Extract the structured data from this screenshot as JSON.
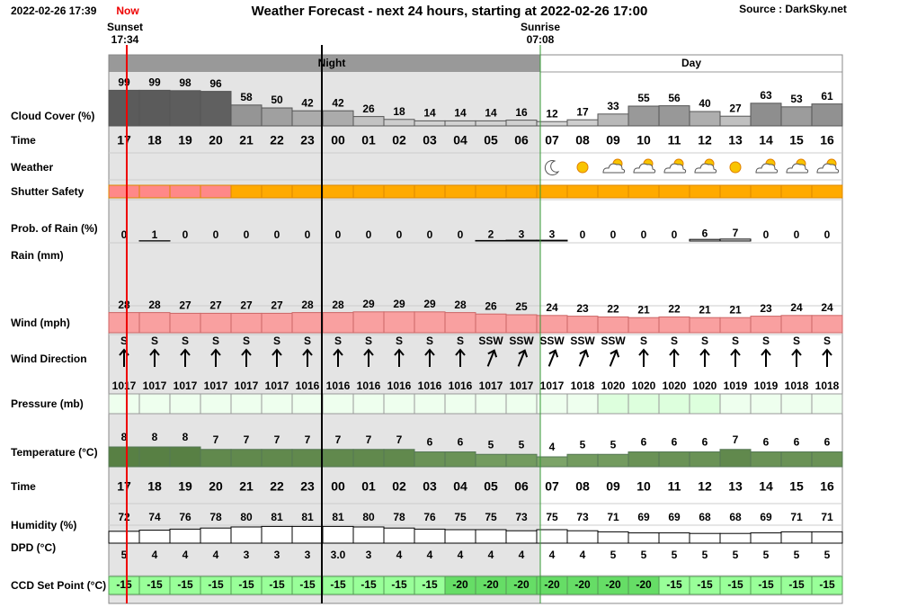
{
  "header": {
    "timestamp": "2022-02-26 17:39",
    "now": "Now",
    "title": "Weather Forecast - next 24 hours, starting at 2022-02-26 17:00",
    "source": "Source : DarkSky.net"
  },
  "sunset": {
    "label": "Sunset",
    "time": "17:34"
  },
  "sunrise": {
    "label": "Sunrise",
    "time": "07:08"
  },
  "periods": [
    "Night",
    "Day"
  ],
  "rows": {
    "cloud_cover": {
      "label": "Cloud Cover (%)",
      "values": [
        99,
        99,
        98,
        96,
        58,
        50,
        42,
        42,
        26,
        18,
        14,
        14,
        14,
        16,
        12,
        17,
        33,
        55,
        56,
        40,
        27,
        63,
        53,
        61
      ]
    },
    "time": {
      "label": "Time",
      "values": [
        "17",
        "18",
        "19",
        "20",
        "21",
        "22",
        "23",
        "00",
        "01",
        "02",
        "03",
        "04",
        "05",
        "06",
        "07",
        "08",
        "09",
        "10",
        "11",
        "12",
        "13",
        "14",
        "15",
        "16"
      ]
    },
    "weather": {
      "label": "Weather"
    },
    "shutter_safety": {
      "label": "Shutter Safety"
    },
    "prob_rain": {
      "label": "Prob. of Rain (%)",
      "values": [
        0,
        1,
        0,
        0,
        0,
        0,
        0,
        0,
        0,
        0,
        0,
        0,
        2,
        3,
        3,
        0,
        0,
        0,
        0,
        6,
        7,
        0,
        0,
        0
      ]
    },
    "rain": {
      "label": "Rain (mm)"
    },
    "wind": {
      "label": "Wind (mph)",
      "values": [
        28,
        28,
        27,
        27,
        27,
        27,
        28,
        28,
        29,
        29,
        29,
        28,
        26,
        25,
        24,
        23,
        22,
        21,
        22,
        21,
        21,
        23,
        24,
        24
      ]
    },
    "wind_direction": {
      "label": "Wind Direction",
      "values": [
        "S",
        "S",
        "S",
        "S",
        "S",
        "S",
        "S",
        "S",
        "S",
        "S",
        "S",
        "S",
        "SSW",
        "SSW",
        "SSW",
        "SSW",
        "SSW",
        "S",
        "S",
        "S",
        "S",
        "S",
        "S",
        "S"
      ]
    },
    "pressure": {
      "label": "Pressure (mb)",
      "values": [
        1017,
        1017,
        1017,
        1017,
        1017,
        1017,
        1016,
        1016,
        1016,
        1016,
        1016,
        1016,
        1017,
        1017,
        1017,
        1018,
        1020,
        1020,
        1020,
        1020,
        1019,
        1019,
        1018,
        1018
      ]
    },
    "temperature": {
      "label": "Temperature (°C)",
      "values": [
        8,
        8,
        8,
        7,
        7,
        7,
        7,
        7,
        7,
        7,
        6,
        6,
        5,
        5,
        4,
        5,
        5,
        6,
        6,
        6,
        7,
        6,
        6,
        6
      ]
    },
    "time2": {
      "label": "Time",
      "values": [
        "17",
        "18",
        "19",
        "20",
        "21",
        "22",
        "23",
        "00",
        "01",
        "02",
        "03",
        "04",
        "05",
        "06",
        "07",
        "08",
        "09",
        "10",
        "11",
        "12",
        "13",
        "14",
        "15",
        "16"
      ]
    },
    "humidity": {
      "label": "Humidity (%)",
      "values": [
        72,
        74,
        76,
        78,
        80,
        81,
        81,
        81,
        80,
        78,
        76,
        75,
        75,
        73,
        75,
        73,
        71,
        69,
        69,
        68,
        68,
        69,
        71,
        71
      ]
    },
    "dpd": {
      "label": "DPD (°C)",
      "values": [
        5,
        4,
        4,
        4,
        3,
        3,
        3,
        "3.0",
        3,
        4,
        4,
        4,
        4,
        4,
        4,
        4,
        5,
        5,
        5,
        5,
        5,
        5,
        5,
        5
      ]
    },
    "ccd": {
      "label": "CCD Set Point (°C)",
      "values": [
        -15,
        -15,
        -15,
        -15,
        -15,
        -15,
        -15,
        -15,
        -15,
        -15,
        -15,
        -20,
        -20,
        -20,
        -20,
        -20,
        -20,
        -20,
        -15,
        -15,
        -15,
        -15,
        -15,
        -15
      ]
    }
  }
}
